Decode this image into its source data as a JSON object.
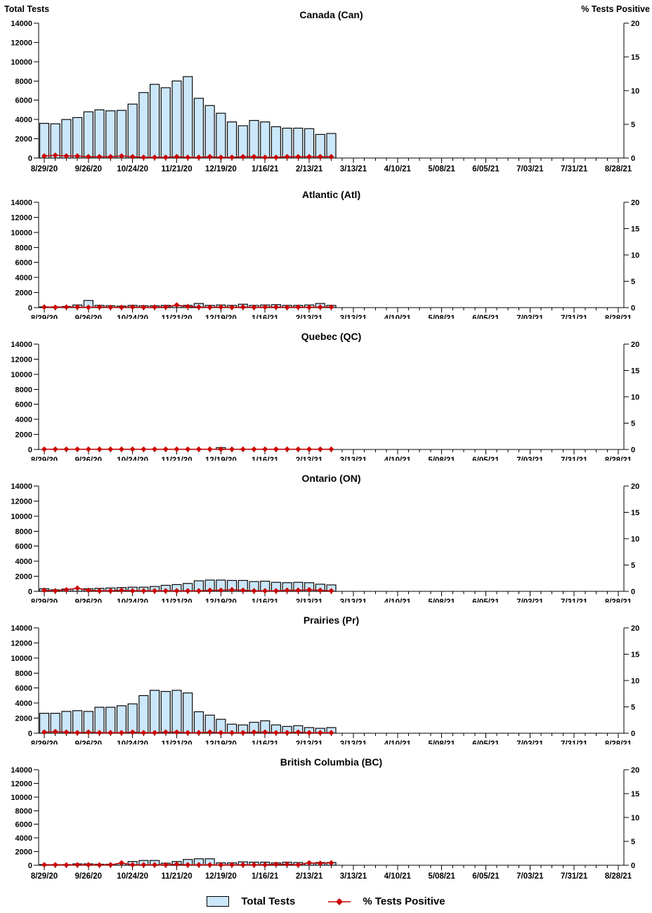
{
  "header": {
    "left_axis_title": "Total Tests",
    "right_axis_title": "% Tests Positive"
  },
  "colors": {
    "bar_fill": "#CBE7FA",
    "bar_border": "#0A0A0A",
    "line": "#CC0000",
    "axis": "#000000",
    "text": "#000000"
  },
  "chart_data": {
    "type": "bar",
    "legend": [
      "Total Tests",
      "% Tests Positive"
    ],
    "left_axis": {
      "label": "Total Tests",
      "min": 0,
      "max": 14000,
      "step": 2000
    },
    "right_axis": {
      "label": "% Tests Positive",
      "min": 0,
      "max": 20,
      "step": 5
    },
    "x_tick_labels": [
      "8/29/20",
      "9/26/20",
      "10/24/20",
      "11/21/20",
      "12/19/20",
      "1/16/21",
      "2/13/21",
      "3/13/21",
      "4/10/21",
      "5/08/21",
      "6/05/21",
      "7/03/21",
      "7/31/21",
      "8/28/21"
    ],
    "weeks_on_axis": 52,
    "categories": [
      "8/29/20",
      "9/5/20",
      "9/12/20",
      "9/19/20",
      "9/26/20",
      "10/3/20",
      "10/10/20",
      "10/17/20",
      "10/24/20",
      "10/31/20",
      "11/7/20",
      "11/14/20",
      "11/21/20",
      "11/28/20",
      "12/5/20",
      "12/12/20",
      "12/19/20",
      "12/26/20",
      "1/2/21",
      "1/9/21",
      "1/16/21",
      "1/23/21",
      "1/30/21",
      "2/6/21",
      "2/13/21",
      "2/20/21",
      "2/27/21"
    ],
    "charts": [
      {
        "title": "Canada (Can)",
        "series": [
          {
            "name": "Total Tests",
            "axis": "left",
            "values": [
              3600,
              3550,
              4000,
              4200,
              4800,
              5000,
              4900,
              4950,
              5600,
              6800,
              7650,
              7300,
              8000,
              8450,
              6200,
              5450,
              4650,
              3750,
              3350,
              3900,
              3750,
              3250,
              3100,
              3100,
              3050,
              2450,
              2550
            ]
          },
          {
            "name": "% Tests Positive",
            "axis": "right",
            "values": [
              0.3,
              0.4,
              0.3,
              0.3,
              0.2,
              0.2,
              0.2,
              0.3,
              0.2,
              0.1,
              0.1,
              0.1,
              0.2,
              0.1,
              0.1,
              0.2,
              0.1,
              0.1,
              0.2,
              0.2,
              0.1,
              0.1,
              0.2,
              0.2,
              0.2,
              0.2,
              0.2
            ]
          }
        ]
      },
      {
        "title": "Atlantic (Atl)",
        "series": [
          {
            "name": "Total Tests",
            "axis": "left",
            "values": [
              100,
              100,
              150,
              350,
              950,
              300,
              250,
              200,
              300,
              250,
              250,
              300,
              250,
              300,
              550,
              300,
              350,
              300,
              450,
              300,
              350,
              400,
              300,
              300,
              350,
              550,
              300
            ]
          },
          {
            "name": "% Tests Positive",
            "axis": "right",
            "values": [
              0.1,
              0.05,
              0.1,
              0.1,
              0.05,
              0.1,
              0.05,
              0.05,
              0.1,
              0.05,
              0.1,
              0.1,
              0.5,
              0.2,
              0.1,
              0.05,
              0.1,
              0.05,
              0.1,
              0.05,
              0.1,
              0.1,
              0.05,
              0.1,
              0.05,
              0.1,
              0.1
            ]
          }
        ]
      },
      {
        "title": "Quebec (QC)",
        "series": [
          {
            "name": "Total Tests",
            "axis": "left",
            "values": [
              0,
              0,
              0,
              0,
              0,
              0,
              0,
              0,
              0,
              0,
              0,
              0,
              0,
              0,
              0,
              0,
              250,
              0,
              0,
              0,
              0,
              0,
              0,
              0,
              0,
              0,
              0
            ]
          },
          {
            "name": "% Tests Positive",
            "axis": "right",
            "values": [
              0.05,
              0.05,
              0.05,
              0.05,
              0.05,
              0.05,
              0.05,
              0.05,
              0.05,
              0.05,
              0.05,
              0.05,
              0.05,
              0.05,
              0.05,
              0.05,
              0.05,
              0.05,
              0.05,
              0.05,
              0.05,
              0.05,
              0.05,
              0.05,
              0.05,
              0.05,
              0.05
            ]
          }
        ]
      },
      {
        "title": "Ontario (ON)",
        "series": [
          {
            "name": "Total Tests",
            "axis": "left",
            "values": [
              350,
              200,
              300,
              350,
              350,
              400,
              450,
              500,
              550,
              550,
              650,
              800,
              900,
              1050,
              1400,
              1500,
              1500,
              1450,
              1450,
              1300,
              1350,
              1200,
              1150,
              1200,
              1150,
              950,
              850
            ]
          },
          {
            "name": "% Tests Positive",
            "axis": "right",
            "values": [
              0.2,
              0.1,
              0.3,
              0.6,
              0.2,
              0.1,
              0.1,
              0.2,
              0.1,
              0.1,
              0.1,
              0.1,
              0.1,
              0.1,
              0.1,
              0.2,
              0.2,
              0.3,
              0.2,
              0.1,
              0.1,
              0.1,
              0.2,
              0.2,
              0.3,
              0.2,
              0.1
            ]
          }
        ]
      },
      {
        "title": "Prairies (Pr)",
        "series": [
          {
            "name": "Total Tests",
            "axis": "left",
            "values": [
              2650,
              2650,
              2900,
              3000,
              2900,
              3450,
              3450,
              3650,
              3900,
              5000,
              5700,
              5550,
              5700,
              5350,
              2850,
              2400,
              1850,
              1200,
              1100,
              1450,
              1650,
              1100,
              900,
              1000,
              750,
              650,
              750
            ]
          },
          {
            "name": "% Tests Positive",
            "axis": "right",
            "values": [
              0.2,
              0.3,
              0.2,
              0.1,
              0.2,
              0.1,
              0.1,
              0.1,
              0.2,
              0.1,
              0.1,
              0.2,
              0.2,
              0.1,
              0.1,
              0.2,
              0.1,
              0.1,
              0.1,
              0.2,
              0.2,
              0.1,
              0.1,
              0.2,
              0.1,
              0.1,
              0.1
            ]
          }
        ]
      },
      {
        "title": "British Columbia (BC)",
        "series": [
          {
            "name": "Total Tests",
            "axis": "left",
            "values": [
              100,
              100,
              100,
              200,
              200,
              150,
              150,
              250,
              550,
              700,
              700,
              300,
              550,
              850,
              950,
              950,
              350,
              350,
              500,
              450,
              450,
              350,
              450,
              400,
              300,
              400,
              400
            ]
          },
          {
            "name": "% Tests Positive",
            "axis": "right",
            "values": [
              0.1,
              0.1,
              0.05,
              0.1,
              0.1,
              0.05,
              0.1,
              0.5,
              0.1,
              0.1,
              0.1,
              0.1,
              0.2,
              0.1,
              0.1,
              0.1,
              0.05,
              0.1,
              0.1,
              0.1,
              0.1,
              0.2,
              0.2,
              0.1,
              0.5,
              0.4,
              0.5
            ]
          }
        ]
      }
    ]
  }
}
